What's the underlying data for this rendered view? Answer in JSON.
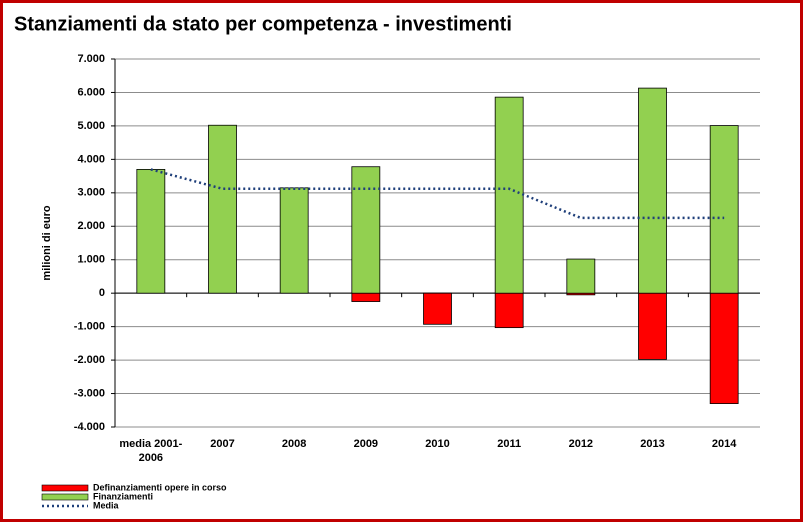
{
  "chart_data": {
    "type": "bar",
    "title": "Stanziamenti da stato per competenza - investimenti",
    "ylabel": "milioni di euro",
    "categories": [
      "media 2001-2006",
      "2007",
      "2008",
      "2009",
      "2010",
      "2011",
      "2012",
      "2013",
      "2014"
    ],
    "series": [
      {
        "name": "Definanziamenti opere in corso",
        "type": "bar",
        "color": "#ff0000",
        "values": [
          0,
          0,
          0,
          -250,
          -930,
          -1030,
          -50,
          -1980,
          -3300
        ]
      },
      {
        "name": "Finanziamenti",
        "type": "bar",
        "color": "#92d050",
        "values": [
          3700,
          5020,
          3150,
          3780,
          0,
          5860,
          1020,
          6130,
          5010
        ]
      },
      {
        "name": "Media",
        "type": "line",
        "color": "#1f3f7a",
        "values": [
          3700,
          3120,
          3120,
          3120,
          3120,
          3120,
          2250,
          2250,
          2250
        ]
      }
    ],
    "ylim": [
      -4000,
      7000
    ],
    "yticks": [
      {
        "value": -4000,
        "label": "-4.000"
      },
      {
        "value": -3000,
        "label": "-3.000"
      },
      {
        "value": -2000,
        "label": "-2.000"
      },
      {
        "value": -1000,
        "label": "-1.000"
      },
      0,
      {
        "value": 1000,
        "label": "1.000"
      },
      {
        "value": 2000,
        "label": "2.000"
      },
      {
        "value": 3000,
        "label": "3.000"
      },
      {
        "value": 4000,
        "label": "4.000"
      },
      {
        "value": 5000,
        "label": "5.000"
      },
      {
        "value": 6000,
        "label": "6.000"
      },
      {
        "value": 7000,
        "label": "7.000"
      }
    ],
    "grid": true,
    "legend": "bottom-left"
  }
}
